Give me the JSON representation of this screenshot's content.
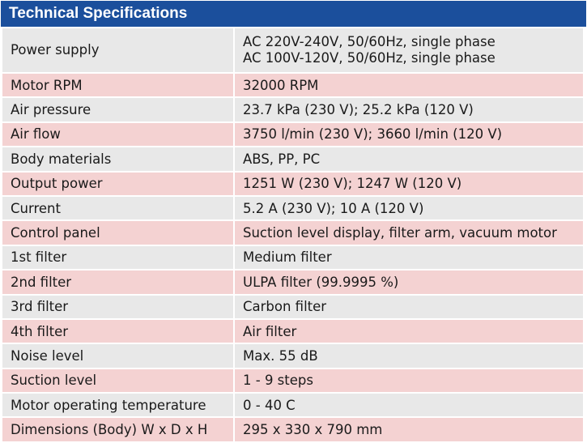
{
  "header": {
    "title": "Technical Specifications"
  },
  "rows": [
    {
      "label": "Power supply",
      "value_lines": [
        "AC 220V-240V, 50/60Hz, single phase",
        "AC 100V-120V, 50/60Hz, single phase"
      ]
    },
    {
      "label": "Motor RPM",
      "value": "32000 RPM"
    },
    {
      "label": "Air pressure",
      "value": "23.7 kPa (230 V); 25.2 kPa (120 V)"
    },
    {
      "label": "Air flow",
      "value": "3750 l/min (230 V); 3660 l/min (120 V)"
    },
    {
      "label": "Body materials",
      "value": "ABS, PP, PC"
    },
    {
      "label": "Output power",
      "value": "1251 W (230 V); 1247 W (120 V)"
    },
    {
      "label": "Current",
      "value": "5.2 A (230 V); 10 A (120 V)"
    },
    {
      "label": "Control panel",
      "value": "Suction level display, filter arm, vacuum motor"
    },
    {
      "label": "1st filter",
      "value": "Medium filter"
    },
    {
      "label": "2nd filter",
      "value": "ULPA filter (99.9995 %)"
    },
    {
      "label": "3rd filter",
      "value": "Carbon filter"
    },
    {
      "label": "4th filter",
      "value": "Air filter"
    },
    {
      "label": "Noise level",
      "value": "Max. 55 dB"
    },
    {
      "label": "Suction level",
      "value": "1 - 9 steps"
    },
    {
      "label": "Motor operating temperature",
      "value": "0 - 40 C"
    },
    {
      "label": "Dimensions (Body) W x D x H",
      "value": "295 x 330 x 790 mm"
    }
  ],
  "colors": {
    "header_bg": "#1b4f9c",
    "row_odd": "#e8e8e8",
    "row_even": "#f4d2d2"
  }
}
